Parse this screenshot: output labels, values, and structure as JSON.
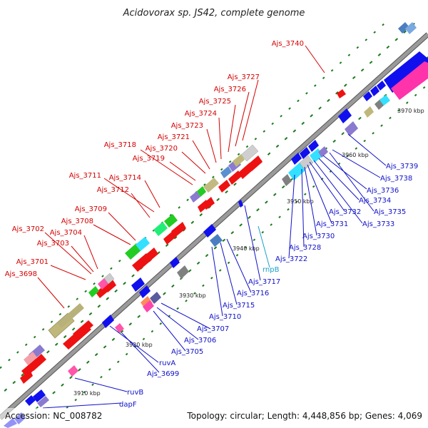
{
  "title": "Acidovorax sp. JS42, complete genome",
  "footer": {
    "accession": "Accession: NC_008782",
    "summary": "Topology: circular; Length: 4,448,856 bp; Genes: 4,069"
  },
  "colors": {
    "backbone": "#8c8c8c",
    "tick": "#1a7a1a",
    "red_label": "#d40000",
    "blue_label": "#1010c8",
    "cyan_label": "#19a0c8"
  },
  "ticks": [
    "3910 kbp",
    "3920 kbp",
    "3930 kbp",
    "3940 kbp",
    "3950 kbp",
    "3960 kbp",
    "3970 kbp"
  ],
  "labels_red": [
    "Ajs_3740",
    "Ajs_3727",
    "Ajs_3726",
    "Ajs_3725",
    "Ajs_3724",
    "Ajs_3723",
    "Ajs_3721",
    "Ajs_3720",
    "Ajs_3718",
    "Ajs_3719",
    "Ajs_3711",
    "Ajs_3714",
    "Ajs_3712",
    "Ajs_3709",
    "Ajs_3708",
    "Ajs_3702",
    "Ajs_3704",
    "Ajs_3703",
    "Ajs_3701",
    "Ajs_3698"
  ],
  "labels_blue": [
    "Ajs_3739",
    "Ajs_3738",
    "Ajs_3736",
    "Ajs_3734",
    "Ajs_3735",
    "Ajs_3733",
    "Ajs_3732",
    "Ajs_3731",
    "Ajs_3730",
    "Ajs_3728",
    "Ajs_3722",
    "Ajs_3717",
    "Ajs_3716",
    "Ajs_3715",
    "Ajs_3710",
    "Ajs_3707",
    "Ajs_3706",
    "Ajs_3705",
    "Ajs_3699",
    "ruvA",
    "ruvB",
    "dapF"
  ],
  "labels_cyan": [
    "rnpB"
  ]
}
